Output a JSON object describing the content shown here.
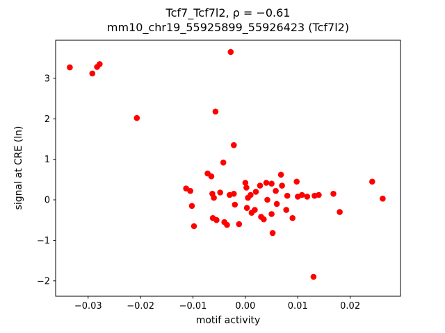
{
  "chart_data": {
    "type": "scatter",
    "title": "Tcf7_Tcf7l2, ρ = −0.61",
    "subtitle": "mm10_chr19_55925899_55926423 (Tcf7l2)",
    "xlabel": "motif activity",
    "ylabel": "signal at CRE (ln)",
    "xlim": [
      -0.0362,
      0.0296
    ],
    "ylim": [
      -2.38,
      3.94
    ],
    "xtick_values": [
      -0.03,
      -0.02,
      -0.01,
      0.0,
      0.01,
      0.02
    ],
    "xtick_labels": [
      "−0.03",
      "−0.02",
      "−0.01",
      "0.00",
      "0.01",
      "0.02"
    ],
    "ytick_values": [
      -2,
      -1,
      0,
      1,
      2,
      3
    ],
    "ytick_labels": [
      "−2",
      "−1",
      "0",
      "1",
      "2",
      "3"
    ],
    "grid": false,
    "legend": "none",
    "marker_color": "#ff0000",
    "points": [
      [
        -0.0335,
        3.27
      ],
      [
        -0.0292,
        3.12
      ],
      [
        -0.0283,
        3.28
      ],
      [
        -0.0278,
        3.35
      ],
      [
        -0.0207,
        2.02
      ],
      [
        -0.0057,
        2.18
      ],
      [
        -0.0028,
        3.65
      ],
      [
        -0.0022,
        1.35
      ],
      [
        -0.0113,
        0.28
      ],
      [
        -0.0105,
        0.22
      ],
      [
        -0.0102,
        -0.15
      ],
      [
        -0.0098,
        -0.65
      ],
      [
        -0.0072,
        0.65
      ],
      [
        -0.0065,
        0.58
      ],
      [
        -0.0063,
        0.15
      ],
      [
        -0.006,
        0.05
      ],
      [
        -0.0062,
        -0.45
      ],
      [
        -0.0055,
        -0.5
      ],
      [
        -0.0048,
        0.18
      ],
      [
        -0.0042,
        0.92
      ],
      [
        -0.004,
        -0.55
      ],
      [
        -0.0035,
        -0.62
      ],
      [
        -0.003,
        0.12
      ],
      [
        -0.0022,
        0.15
      ],
      [
        -0.002,
        -0.12
      ],
      [
        -0.0012,
        -0.6
      ],
      [
        0.0,
        0.42
      ],
      [
        0.0002,
        0.3
      ],
      [
        0.0003,
        -0.2
      ],
      [
        0.0005,
        0.05
      ],
      [
        0.001,
        0.12
      ],
      [
        0.0012,
        -0.32
      ],
      [
        0.0018,
        -0.25
      ],
      [
        0.002,
        0.2
      ],
      [
        0.0028,
        0.35
      ],
      [
        0.003,
        -0.42
      ],
      [
        0.0035,
        -0.48
      ],
      [
        0.004,
        0.42
      ],
      [
        0.0042,
        0.0
      ],
      [
        0.005,
        0.4
      ],
      [
        0.005,
        -0.35
      ],
      [
        0.0052,
        -0.82
      ],
      [
        0.0058,
        0.22
      ],
      [
        0.006,
        -0.1
      ],
      [
        0.0068,
        0.62
      ],
      [
        0.007,
        0.35
      ],
      [
        0.0078,
        -0.25
      ],
      [
        0.008,
        0.1
      ],
      [
        0.009,
        -0.45
      ],
      [
        0.0098,
        0.45
      ],
      [
        0.01,
        0.08
      ],
      [
        0.0108,
        0.12
      ],
      [
        0.0118,
        0.08
      ],
      [
        0.013,
        -1.9
      ],
      [
        0.0132,
        0.1
      ],
      [
        0.014,
        0.12
      ],
      [
        0.0168,
        0.15
      ],
      [
        0.018,
        -0.3
      ],
      [
        0.0242,
        0.45
      ],
      [
        0.0262,
        0.03
      ]
    ]
  }
}
